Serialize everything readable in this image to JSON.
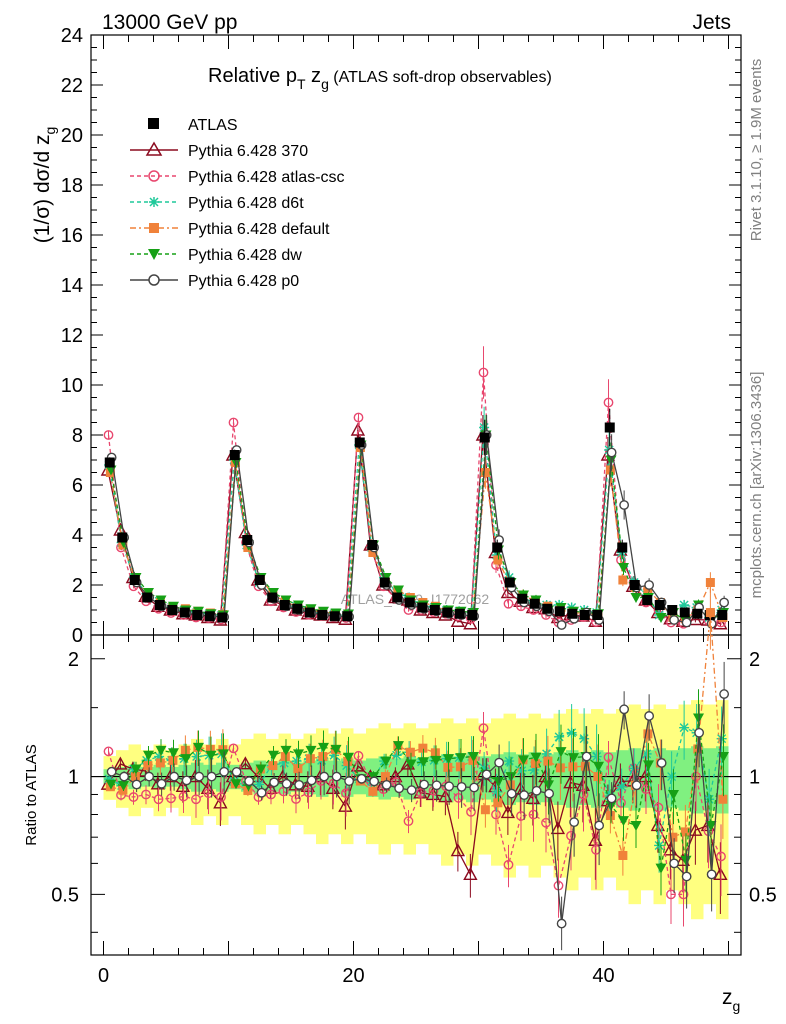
{
  "header": {
    "energy": "13000 GeV pp",
    "category": "Jets",
    "title_main": "Relative p",
    "title_sub1": "T",
    "title_mid": " z",
    "title_sub2": "g",
    "title_paren": " (ATLAS soft-drop observables)",
    "watermark": "ATLAS_2019_I1772062",
    "side_rivet": "Rivet 3.1.10, ≥ 1.9M events",
    "side_mcplots": "mcplots.cern.ch [arXiv:1306.3436]"
  },
  "axes": {
    "ylabel_main": "(1/σ) dσ/d z",
    "ylabel_main_sub": "g",
    "ylabel_ratio": "Ratio to ATLAS",
    "xlabel": "z",
    "xlabel_sub": "g"
  },
  "legend": [
    "ATLAS",
    "Pythia 6.428 370",
    "Pythia 6.428 atlas-csc",
    "Pythia 6.428 d6t",
    "Pythia 6.428 default",
    "Pythia 6.428 dw",
    "Pythia 6.428 p0"
  ],
  "colors": {
    "atlas": "#000000",
    "p370": "#8b0a1f",
    "atlas_csc": "#e8476e",
    "d6t": "#1fc99a",
    "default": "#f0823a",
    "dw": "#16a016",
    "p0": "#444444",
    "band_outer": "#ffff80",
    "band_inner": "#80f080"
  },
  "chart_data": {
    "type": "scatter",
    "x": [
      0.5,
      1.5,
      2.5,
      3.5,
      4.5,
      5.5,
      6.5,
      7.5,
      8.5,
      9.5,
      10.5,
      11.5,
      12.5,
      13.5,
      14.5,
      15.5,
      16.5,
      17.5,
      18.5,
      19.5,
      20.5,
      21.5,
      22.5,
      23.5,
      24.5,
      25.5,
      26.5,
      27.5,
      28.5,
      29.5,
      30.5,
      31.5,
      32.5,
      33.5,
      34.5,
      35.5,
      36.5,
      37.5,
      38.5,
      39.5,
      40.5,
      41.5,
      42.5,
      43.5,
      44.5,
      45.5,
      46.5,
      47.5,
      48.5,
      49.5
    ],
    "main": {
      "xlim": [
        -1,
        51
      ],
      "ylim": [
        0,
        24
      ],
      "yticks": [
        0,
        2,
        4,
        6,
        8,
        10,
        12,
        14,
        16,
        18,
        20,
        22,
        24
      ],
      "xticks": [
        0,
        20,
        40
      ]
    },
    "ratio": {
      "ylim": [
        0.35,
        2.3
      ],
      "yticks": [
        0.5,
        1,
        2
      ]
    },
    "series": [
      {
        "name": "ATLAS",
        "key": "atlas",
        "values": [
          6.9,
          3.9,
          2.2,
          1.5,
          1.2,
          1.0,
          0.9,
          0.8,
          0.75,
          0.7,
          7.2,
          3.8,
          2.2,
          1.5,
          1.2,
          1.05,
          0.9,
          0.8,
          0.75,
          0.75,
          7.7,
          3.6,
          2.1,
          1.5,
          1.3,
          1.1,
          1.0,
          0.9,
          0.85,
          0.8,
          7.9,
          3.5,
          2.1,
          1.45,
          1.25,
          1.05,
          0.95,
          0.85,
          0.8,
          0.8,
          8.3,
          3.5,
          2.0,
          1.4,
          1.2,
          1.0,
          0.9,
          0.85,
          0.8,
          0.8
        ]
      },
      {
        "name": "Pythia 6.428 370",
        "key": "p370",
        "values": [
          6.6,
          4.2,
          2.3,
          1.55,
          1.15,
          1.0,
          0.85,
          0.8,
          0.7,
          0.6,
          7.2,
          4.1,
          2.2,
          1.4,
          1.2,
          1.0,
          0.85,
          0.8,
          0.7,
          0.63,
          8.2,
          3.6,
          2.0,
          1.5,
          1.4,
          1.0,
          0.9,
          0.8,
          0.55,
          0.45,
          8.0,
          3.3,
          1.7,
          1.35,
          1.1,
          1.05,
          0.7,
          0.82,
          0.76,
          0.55,
          7.2,
          3.4,
          1.95,
          1.4,
          0.9,
          0.65,
          0.55,
          0.62,
          0.6,
          0.45
        ]
      },
      {
        "name": "Pythia 6.428 atlas-csc",
        "key": "atlas_csc",
        "values": [
          8.0,
          3.5,
          1.95,
          1.35,
          1.05,
          0.88,
          0.8,
          0.7,
          0.68,
          0.62,
          8.5,
          3.7,
          1.95,
          1.35,
          1.1,
          0.92,
          0.82,
          0.78,
          0.72,
          0.68,
          8.7,
          3.5,
          1.95,
          1.45,
          1.0,
          1.0,
          0.92,
          0.85,
          0.75,
          0.65,
          10.5,
          2.8,
          1.25,
          1.15,
          1.0,
          0.8,
          0.5,
          0.6,
          0.72,
          0.52,
          9.3,
          3.0,
          2.1,
          1.3,
          1.0,
          0.5,
          0.45,
          0.85,
          0.58,
          0.5
        ]
      },
      {
        "name": "Pythia 6.428 d6t",
        "key": "d6t",
        "values": [
          6.8,
          3.7,
          2.3,
          1.65,
          1.35,
          1.1,
          1.0,
          0.9,
          0.85,
          0.8,
          7.0,
          3.6,
          2.1,
          1.6,
          1.3,
          1.15,
          1.0,
          0.88,
          0.85,
          0.8,
          7.6,
          3.5,
          2.3,
          1.7,
          1.5,
          1.2,
          1.1,
          1.0,
          0.95,
          0.9,
          8.3,
          3.2,
          2.3,
          1.5,
          1.3,
          1.2,
          1.2,
          1.1,
          1.0,
          0.9,
          7.4,
          3.3,
          2.1,
          1.6,
          0.8,
          1.0,
          1.2,
          1.1,
          0.7,
          1.0
        ]
      },
      {
        "name": "Pythia 6.428 default",
        "key": "default",
        "values": [
          6.5,
          3.6,
          2.2,
          1.6,
          1.3,
          1.1,
          1.05,
          0.95,
          0.88,
          0.82,
          6.9,
          3.5,
          2.3,
          1.6,
          1.35,
          1.1,
          1.0,
          0.9,
          0.88,
          0.82,
          7.5,
          3.3,
          2.1,
          1.8,
          1.5,
          1.3,
          1.15,
          0.95,
          0.9,
          0.88,
          6.5,
          3.0,
          2.0,
          1.6,
          1.35,
          1.15,
          1.0,
          0.9,
          0.85,
          0.8,
          6.6,
          2.2,
          1.9,
          1.8,
          1.3,
          0.7,
          0.65,
          1.0,
          2.1,
          0.7
        ]
      },
      {
        "name": "Pythia 6.428 dw",
        "key": "dw",
        "values": [
          6.6,
          3.7,
          2.3,
          1.7,
          1.4,
          1.15,
          1.0,
          0.95,
          0.85,
          0.8,
          6.9,
          3.6,
          2.3,
          1.7,
          1.4,
          1.2,
          1.05,
          0.95,
          0.88,
          0.84,
          7.6,
          3.6,
          2.3,
          1.8,
          1.4,
          1.2,
          1.1,
          1.0,
          0.95,
          0.9,
          8.0,
          3.4,
          2.1,
          1.6,
          1.4,
          1.0,
          1.1,
          0.95,
          0.9,
          0.85,
          7.0,
          2.7,
          1.5,
          1.5,
          0.7,
          0.9,
          0.55,
          1.2,
          0.6,
          0.9
        ]
      },
      {
        "name": "Pythia 6.428 p0",
        "key": "p0",
        "values": [
          7.1,
          3.9,
          2.1,
          1.5,
          1.15,
          1.0,
          0.88,
          0.8,
          0.75,
          0.72,
          7.4,
          3.7,
          2.0,
          1.45,
          1.15,
          1.0,
          0.88,
          0.8,
          0.75,
          0.73,
          7.6,
          3.5,
          2.0,
          1.4,
          1.2,
          1.05,
          0.95,
          0.85,
          0.8,
          0.75,
          8.0,
          3.8,
          1.9,
          1.3,
          1.15,
          0.95,
          0.4,
          0.65,
          0.9,
          0.6,
          7.3,
          5.2,
          1.9,
          2.0,
          1.3,
          0.6,
          0.5,
          1.1,
          0.45,
          1.3
        ]
      }
    ]
  }
}
